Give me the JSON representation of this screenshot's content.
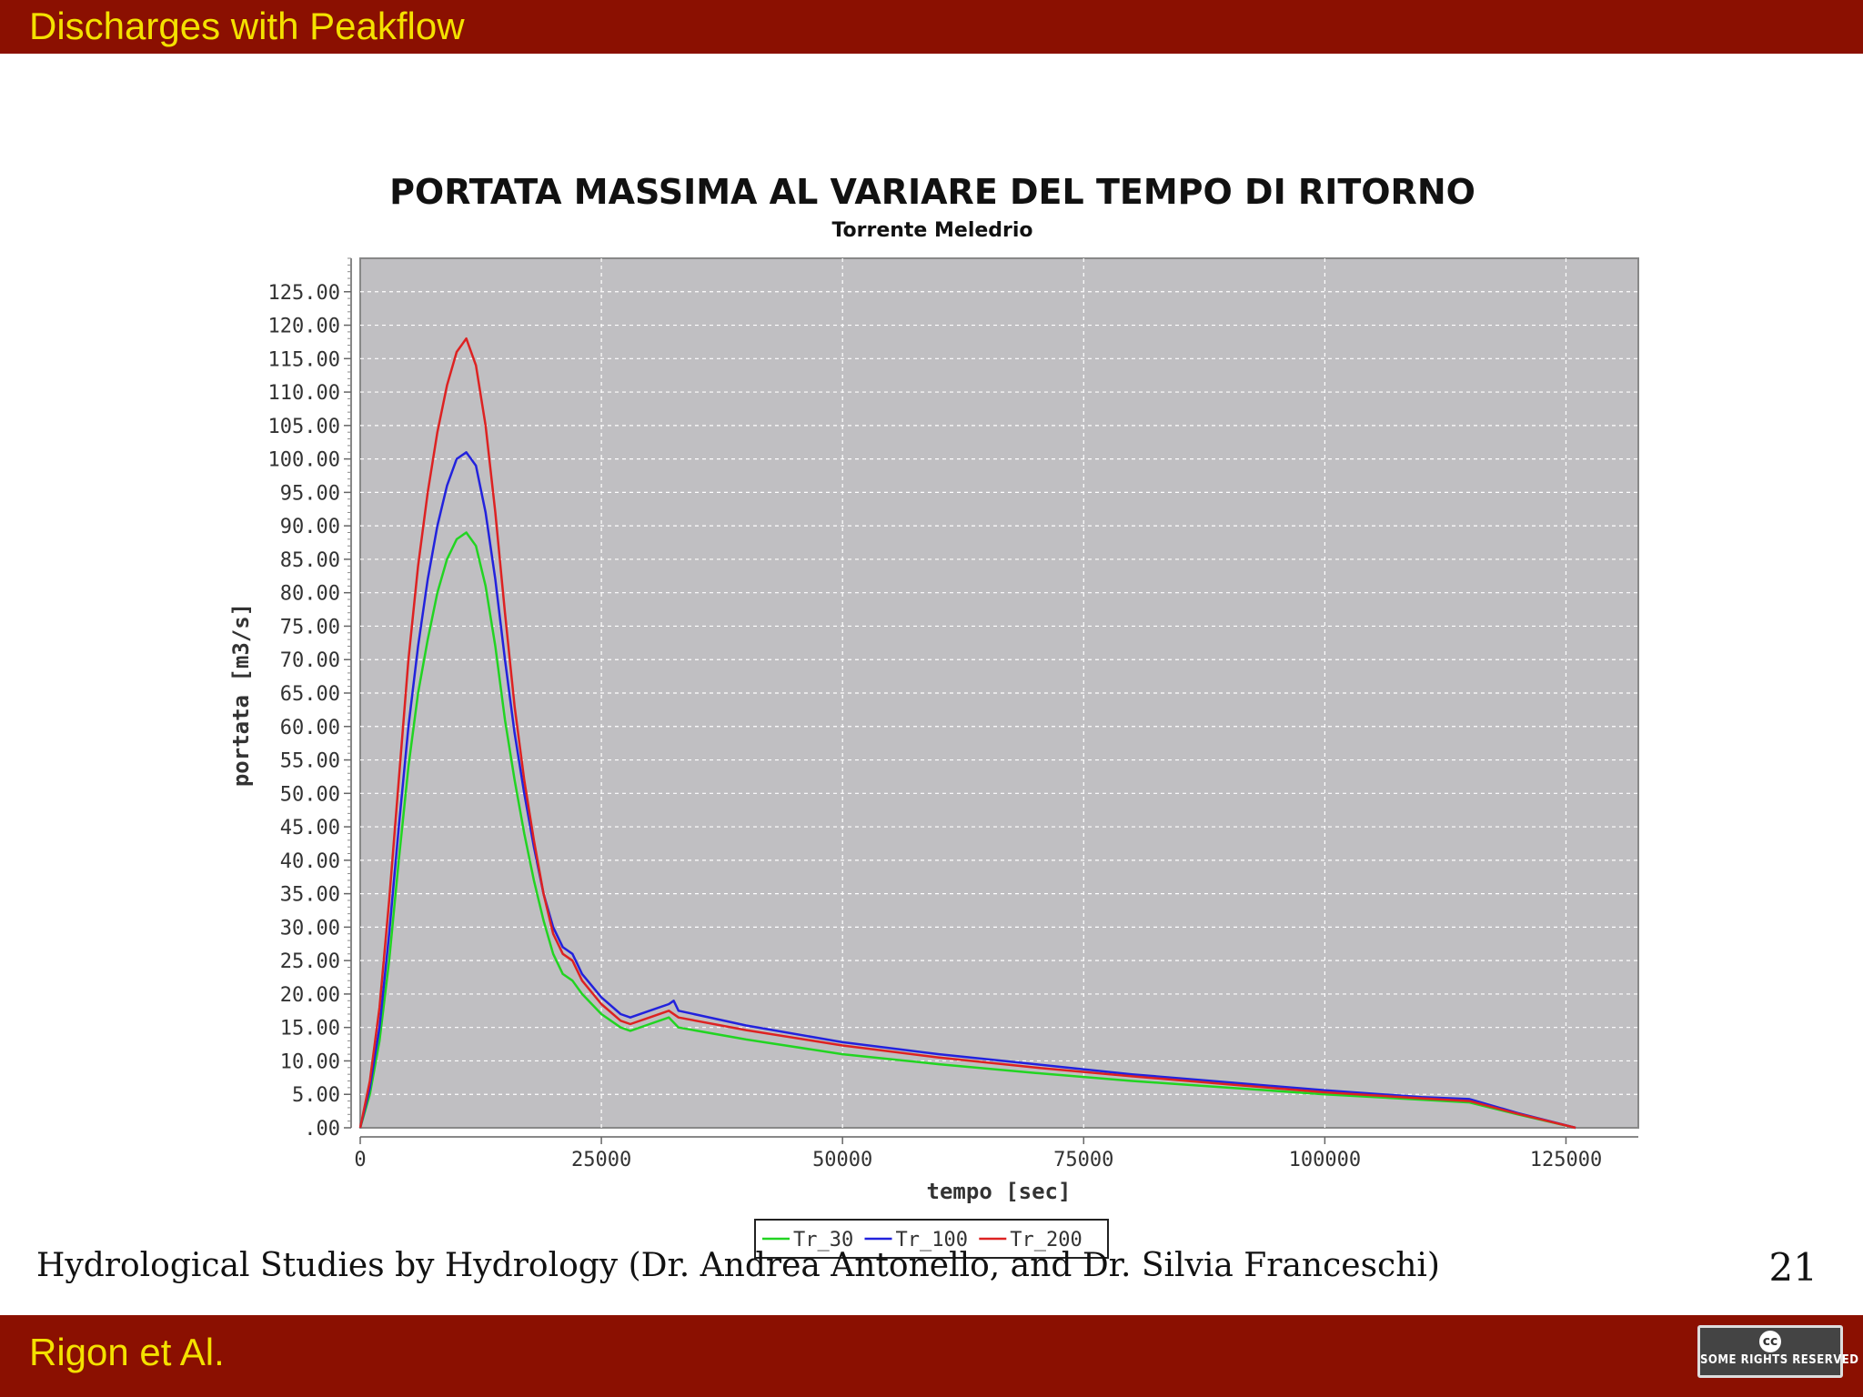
{
  "slide": {
    "title": "Discharges with Peakflow",
    "footer": "Hydrological Studies by Hydrology (Dr. Andrea Antonello, and Dr. Silvia Franceschi)",
    "page_number": "21",
    "authors": "Rigon et  Al.",
    "cc_badge_text": "SOME RIGHTS RESERVED",
    "cc_symbol": "cc"
  },
  "chart_data": {
    "type": "line",
    "title": "PORTATA MASSIMA AL VARIARE DEL TEMPO DI RITORNO",
    "subtitle": "Torrente Meledrio",
    "xlabel": "tempo [sec]",
    "ylabel": "portata [m3/s]",
    "xlim": [
      0,
      132500
    ],
    "ylim": [
      0,
      130
    ],
    "xticks": [
      0,
      25000,
      50000,
      75000,
      100000,
      125000
    ],
    "xtick_labels": [
      "0",
      "25000",
      "50000",
      "75000",
      "100000",
      "125000"
    ],
    "yticks": [
      0,
      5,
      10,
      15,
      20,
      25,
      30,
      35,
      40,
      45,
      50,
      55,
      60,
      65,
      70,
      75,
      80,
      85,
      90,
      95,
      100,
      105,
      110,
      115,
      120,
      125
    ],
    "ytick_labels": [
      ".00",
      "5.00",
      "10.00",
      "15.00",
      "20.00",
      "25.00",
      "30.00",
      "35.00",
      "40.00",
      "45.00",
      "50.00",
      "55.00",
      "60.00",
      "65.00",
      "70.00",
      "75.00",
      "80.00",
      "85.00",
      "90.00",
      "95.00",
      "100.00",
      "105.00",
      "110.00",
      "115.00",
      "120.00",
      "125.00"
    ],
    "grid": true,
    "legend_position": "bottom-center",
    "background_color": "#c0bfc2",
    "series": [
      {
        "name": "Tr_30",
        "color": "#22d422",
        "x": [
          0,
          1000,
          2000,
          3000,
          4000,
          5000,
          6000,
          7000,
          8000,
          9000,
          10000,
          11000,
          12000,
          13000,
          14000,
          15000,
          16000,
          17000,
          18000,
          19000,
          20000,
          21000,
          22000,
          23000,
          25000,
          27000,
          28000,
          30000,
          32000,
          33000,
          40000,
          50000,
          60000,
          70000,
          80000,
          90000,
          100000,
          110000,
          115000,
          120000,
          126000
        ],
        "y": [
          0,
          5,
          13,
          25,
          40,
          54,
          65,
          73,
          80,
          85,
          88,
          89,
          87,
          81,
          72,
          61,
          52,
          44,
          37,
          31,
          26,
          23,
          22,
          20,
          17,
          15,
          14.5,
          15.5,
          16.5,
          15,
          13.2,
          11,
          9.5,
          8.2,
          7,
          6,
          5,
          4.2,
          3.8,
          2,
          0
        ]
      },
      {
        "name": "Tr_100",
        "color": "#2222dd",
        "x": [
          0,
          1000,
          2000,
          3000,
          4000,
          5000,
          6000,
          7000,
          8000,
          9000,
          10000,
          11000,
          12000,
          13000,
          14000,
          15000,
          16000,
          17000,
          18000,
          19000,
          20000,
          21000,
          22000,
          23000,
          25000,
          27000,
          28000,
          30000,
          32000,
          32500,
          33000,
          40000,
          50000,
          60000,
          70000,
          80000,
          90000,
          100000,
          110000,
          115000,
          120000,
          126000
        ],
        "y": [
          0,
          6,
          15,
          29,
          45,
          60,
          72,
          82,
          90,
          96,
          100,
          101,
          99,
          92,
          82,
          70,
          59,
          50,
          42,
          35,
          30,
          27,
          26,
          23,
          19.5,
          17,
          16.5,
          17.5,
          18.5,
          19,
          17.5,
          15.3,
          12.8,
          11,
          9.5,
          8,
          6.8,
          5.6,
          4.6,
          4.3,
          2.2,
          0
        ]
      },
      {
        "name": "Tr_200",
        "color": "#dd2222",
        "x": [
          0,
          1000,
          2000,
          3000,
          4000,
          5000,
          6000,
          7000,
          8000,
          9000,
          10000,
          11000,
          12000,
          13000,
          14000,
          15000,
          16000,
          17000,
          18000,
          19000,
          20000,
          21000,
          22000,
          23000,
          25000,
          27000,
          28000,
          30000,
          32000,
          33000,
          40000,
          50000,
          60000,
          70000,
          80000,
          90000,
          100000,
          110000,
          115000,
          120000,
          126000
        ],
        "y": [
          0,
          7,
          18,
          34,
          52,
          70,
          84,
          95,
          104,
          111,
          116,
          118,
          114,
          105,
          92,
          77,
          63,
          52,
          43,
          35,
          29,
          26,
          25,
          22,
          18.5,
          16,
          15.5,
          16.5,
          17.5,
          16.5,
          14.6,
          12.3,
          10.5,
          9,
          7.7,
          6.5,
          5.3,
          4.4,
          4,
          2.1,
          0
        ]
      }
    ]
  }
}
